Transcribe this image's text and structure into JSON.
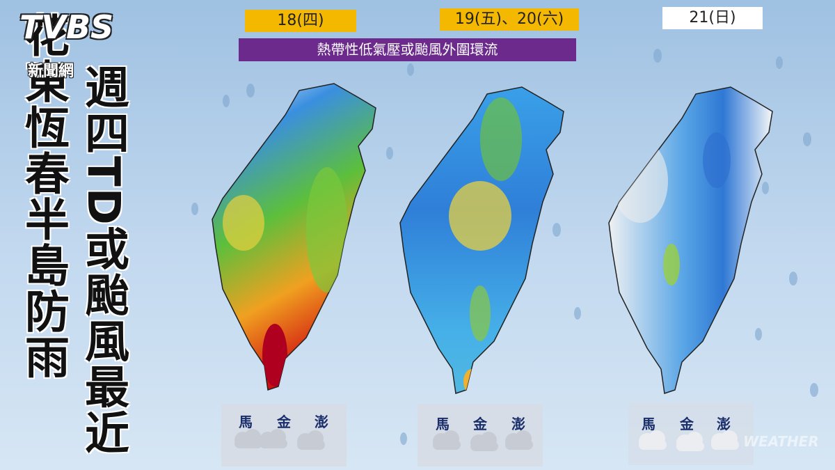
{
  "logo": {
    "brand": "TVBS",
    "sub": "新聞網"
  },
  "headlines": [
    "花東恆春半島防雨",
    "週四TD或颱風最近"
  ],
  "banner": "熱帶性低氣壓或颱風外圍環流",
  "panels": [
    {
      "date": "18(四)",
      "islands": [
        "馬",
        "金",
        "澎"
      ]
    },
    {
      "date": "19(五)、20(六)",
      "islands": [
        "馬",
        "金",
        "澎"
      ]
    },
    {
      "date": "21(日)",
      "islands": [
        "馬",
        "金",
        "澎"
      ]
    }
  ],
  "watermark": "WEATHER"
}
